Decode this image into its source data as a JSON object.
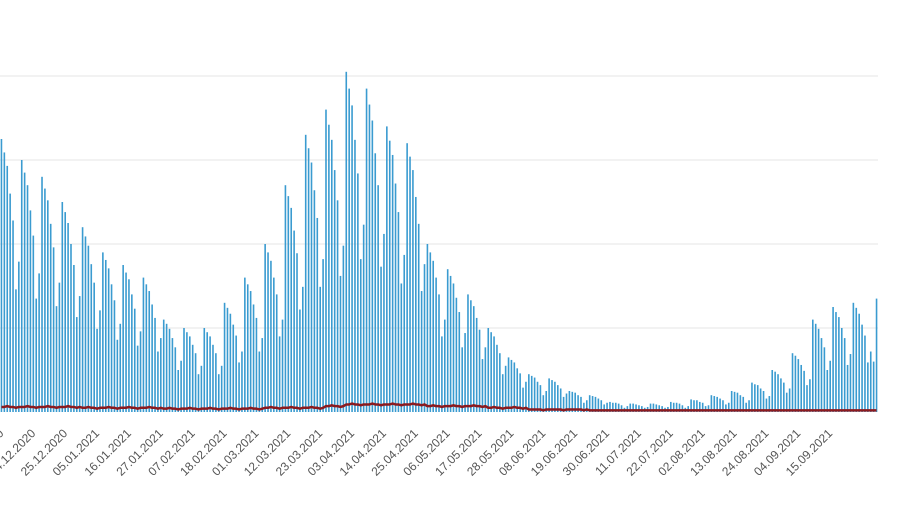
{
  "chart_data": {
    "type": "bar",
    "categories": [
      null,
      "2020",
      null,
      null,
      null,
      null,
      null,
      null,
      null,
      null,
      null,
      null,
      "14.12.2020",
      null,
      null,
      null,
      null,
      null,
      null,
      null,
      null,
      null,
      null,
      "25.12.2020",
      null,
      null,
      null,
      null,
      null,
      null,
      null,
      null,
      null,
      null,
      "05.01.2021",
      null,
      null,
      null,
      null,
      null,
      null,
      null,
      null,
      null,
      null,
      "16.01.2021",
      null,
      null,
      null,
      null,
      null,
      null,
      null,
      null,
      null,
      null,
      "27.01.2021",
      null,
      null,
      null,
      null,
      null,
      null,
      null,
      null,
      null,
      null,
      "07.02.2021",
      null,
      null,
      null,
      null,
      null,
      null,
      null,
      null,
      null,
      null,
      "18.02.2021",
      null,
      null,
      null,
      null,
      null,
      null,
      null,
      null,
      null,
      null,
      "01.03.2021",
      null,
      null,
      null,
      null,
      null,
      null,
      null,
      null,
      null,
      null,
      "12.03.2021",
      null,
      null,
      null,
      null,
      null,
      null,
      null,
      null,
      null,
      null,
      "23.03.2021",
      null,
      null,
      null,
      null,
      null,
      null,
      null,
      null,
      null,
      null,
      "03.04.2021",
      null,
      null,
      null,
      null,
      null,
      null,
      null,
      null,
      null,
      null,
      "14.04.2021",
      null,
      null,
      null,
      null,
      null,
      null,
      null,
      null,
      null,
      null,
      "25.04.2021",
      null,
      null,
      null,
      null,
      null,
      null,
      null,
      null,
      null,
      null,
      "06.05.2021",
      null,
      null,
      null,
      null,
      null,
      null,
      null,
      null,
      null,
      null,
      "17.05.2021",
      null,
      null,
      null,
      null,
      null,
      null,
      null,
      null,
      null,
      null,
      "28.05.2021",
      null,
      null,
      null,
      null,
      null,
      null,
      null,
      null,
      null,
      null,
      "08.06.2021",
      null,
      null,
      null,
      null,
      null,
      null,
      null,
      null,
      null,
      null,
      "19.06.2021",
      null,
      null,
      null,
      null,
      null,
      null,
      null,
      null,
      null,
      null,
      "30.06.2021",
      null,
      null,
      null,
      null,
      null,
      null,
      null,
      null,
      null,
      null,
      "11.07.2021",
      null,
      null,
      null,
      null,
      null,
      null,
      null,
      null,
      null,
      null,
      "22.07.2021",
      null,
      null,
      null,
      null,
      null,
      null,
      null,
      null,
      null,
      null,
      "02.08.2021",
      null,
      null,
      null,
      null,
      null,
      null,
      null,
      null,
      null,
      null,
      "13.08.2021",
      null,
      null,
      null,
      null,
      null,
      null,
      null,
      null,
      null,
      null,
      "24.08.2021",
      null,
      null,
      null,
      null,
      null,
      null,
      null,
      null,
      null,
      null,
      "04.09.2021",
      null,
      null,
      null,
      null,
      null,
      null,
      null,
      null,
      null,
      null,
      "15.09.2021",
      null,
      null,
      null,
      null,
      null,
      null,
      null,
      null,
      null,
      null,
      null,
      null,
      null,
      null,
      null
    ],
    "series": [
      {
        "type": "bar",
        "color": "#3a9bd0",
        "values": [
          3.25,
          3.09,
          2.93,
          2.6,
          2.28,
          1.46,
          1.79,
          3.0,
          2.85,
          2.7,
          2.4,
          2.1,
          1.35,
          1.65,
          2.8,
          2.66,
          2.52,
          2.24,
          1.96,
          1.26,
          1.54,
          2.5,
          2.38,
          2.25,
          2.0,
          1.75,
          1.13,
          1.38,
          2.2,
          2.09,
          1.98,
          1.76,
          1.54,
          0.99,
          1.21,
          1.9,
          1.81,
          1.71,
          1.52,
          1.33,
          0.86,
          1.05,
          1.75,
          1.66,
          1.58,
          1.4,
          1.23,
          0.79,
          0.96,
          1.6,
          1.52,
          1.44,
          1.28,
          1.12,
          0.72,
          0.88,
          1.1,
          1.05,
          0.99,
          0.88,
          0.77,
          0.5,
          0.61,
          1.0,
          0.95,
          0.9,
          0.8,
          0.7,
          0.45,
          0.55,
          1.0,
          0.95,
          0.9,
          0.8,
          0.7,
          0.45,
          0.55,
          1.3,
          1.24,
          1.17,
          1.04,
          0.91,
          0.59,
          0.72,
          1.6,
          1.52,
          1.44,
          1.28,
          1.12,
          0.72,
          0.88,
          2.0,
          1.9,
          1.8,
          1.6,
          1.4,
          0.9,
          1.1,
          2.7,
          2.57,
          2.43,
          2.16,
          1.89,
          1.22,
          1.49,
          3.3,
          3.14,
          2.97,
          2.64,
          2.31,
          1.49,
          1.82,
          3.6,
          3.42,
          3.24,
          2.88,
          2.52,
          1.62,
          1.98,
          4.05,
          3.85,
          3.65,
          3.24,
          2.84,
          1.82,
          2.23,
          3.85,
          3.66,
          3.47,
          3.08,
          2.7,
          1.73,
          2.12,
          3.4,
          3.23,
          3.06,
          2.72,
          2.38,
          1.53,
          1.87,
          3.2,
          3.04,
          2.88,
          2.56,
          2.24,
          1.44,
          1.76,
          2.0,
          1.9,
          1.8,
          1.6,
          1.4,
          0.9,
          1.1,
          1.7,
          1.62,
          1.53,
          1.36,
          1.19,
          0.77,
          0.94,
          1.4,
          1.33,
          1.26,
          1.12,
          0.98,
          0.63,
          0.77,
          1.0,
          0.95,
          0.9,
          0.8,
          0.7,
          0.45,
          0.55,
          0.65,
          0.62,
          0.59,
          0.52,
          0.46,
          0.29,
          0.36,
          0.45,
          0.43,
          0.41,
          0.36,
          0.32,
          0.2,
          0.25,
          0.4,
          0.38,
          0.36,
          0.32,
          0.28,
          0.18,
          0.22,
          0.25,
          0.24,
          0.23,
          0.2,
          0.18,
          0.11,
          0.14,
          0.2,
          0.19,
          0.18,
          0.16,
          0.14,
          0.09,
          0.11,
          0.12,
          0.11,
          0.11,
          0.1,
          0.08,
          0.05,
          0.07,
          0.1,
          0.1,
          0.09,
          0.08,
          0.07,
          0.05,
          0.06,
          0.1,
          0.1,
          0.09,
          0.08,
          0.07,
          0.05,
          0.06,
          0.12,
          0.11,
          0.11,
          0.1,
          0.08,
          0.05,
          0.07,
          0.15,
          0.14,
          0.14,
          0.12,
          0.11,
          0.07,
          0.08,
          0.2,
          0.19,
          0.18,
          0.16,
          0.14,
          0.09,
          0.11,
          0.25,
          0.24,
          0.23,
          0.2,
          0.18,
          0.11,
          0.14,
          0.35,
          0.33,
          0.32,
          0.28,
          0.25,
          0.16,
          0.19,
          0.5,
          0.48,
          0.45,
          0.4,
          0.35,
          0.23,
          0.28,
          0.7,
          0.67,
          0.63,
          0.56,
          0.49,
          0.32,
          0.39,
          1.1,
          1.05,
          0.99,
          0.88,
          0.77,
          0.5,
          0.61,
          1.25,
          1.19,
          1.13,
          1.0,
          0.88,
          0.56,
          0.69,
          1.3,
          1.24,
          1.17,
          1.04,
          0.91,
          0.59,
          0.72,
          0.6,
          1.35
        ]
      },
      {
        "type": "line",
        "color": "#8b1a1f",
        "values": [
          0.06,
          0.06,
          0.07,
          0.06,
          0.06,
          0.05,
          0.06,
          0.06,
          0.06,
          0.07,
          0.06,
          0.06,
          0.05,
          0.06,
          0.06,
          0.06,
          0.07,
          0.06,
          0.06,
          0.05,
          0.06,
          0.06,
          0.06,
          0.07,
          0.06,
          0.06,
          0.05,
          0.06,
          0.05,
          0.05,
          0.06,
          0.05,
          0.05,
          0.04,
          0.05,
          0.05,
          0.05,
          0.06,
          0.05,
          0.05,
          0.04,
          0.05,
          0.05,
          0.05,
          0.06,
          0.05,
          0.05,
          0.04,
          0.05,
          0.05,
          0.05,
          0.06,
          0.05,
          0.05,
          0.04,
          0.05,
          0.04,
          0.04,
          0.05,
          0.04,
          0.04,
          0.03,
          0.04,
          0.04,
          0.04,
          0.05,
          0.04,
          0.04,
          0.03,
          0.04,
          0.04,
          0.04,
          0.05,
          0.04,
          0.04,
          0.03,
          0.04,
          0.04,
          0.04,
          0.05,
          0.04,
          0.04,
          0.03,
          0.04,
          0.04,
          0.04,
          0.05,
          0.04,
          0.04,
          0.03,
          0.04,
          0.05,
          0.05,
          0.06,
          0.05,
          0.05,
          0.04,
          0.05,
          0.05,
          0.05,
          0.06,
          0.05,
          0.05,
          0.04,
          0.05,
          0.05,
          0.05,
          0.06,
          0.05,
          0.05,
          0.04,
          0.05,
          0.07,
          0.07,
          0.08,
          0.07,
          0.07,
          0.06,
          0.07,
          0.09,
          0.09,
          0.1,
          0.09,
          0.09,
          0.08,
          0.09,
          0.09,
          0.09,
          0.1,
          0.09,
          0.09,
          0.08,
          0.09,
          0.09,
          0.09,
          0.1,
          0.09,
          0.09,
          0.08,
          0.09,
          0.09,
          0.09,
          0.1,
          0.09,
          0.09,
          0.08,
          0.09,
          0.07,
          0.07,
          0.08,
          0.07,
          0.07,
          0.06,
          0.07,
          0.07,
          0.07,
          0.08,
          0.07,
          0.07,
          0.06,
          0.07,
          0.07,
          0.07,
          0.08,
          0.07,
          0.07,
          0.06,
          0.07,
          0.05,
          0.05,
          0.06,
          0.05,
          0.05,
          0.04,
          0.05,
          0.05,
          0.05,
          0.06,
          0.05,
          0.05,
          0.04,
          0.05,
          0.03,
          0.03,
          0.03,
          0.03,
          0.03,
          0.02,
          0.03,
          0.03,
          0.03,
          0.03,
          0.03,
          0.03,
          0.02,
          0.03,
          0.03,
          0.03,
          0.03,
          0.03,
          0.03,
          0.02,
          0.03,
          0.02,
          0.02,
          0.02,
          0.02,
          0.02,
          0.02,
          0.02,
          0.02,
          0.02,
          0.02,
          0.02,
          0.02,
          0.02,
          0.02,
          0.02,
          0.02,
          0.02,
          0.02,
          0.02,
          0.02,
          0.02,
          0.02,
          0.02,
          0.02,
          0.02,
          0.02,
          0.02,
          0.02,
          0.02,
          0.02,
          0.02,
          0.02,
          0.02,
          0.02,
          0.02,
          0.02,
          0.02,
          0.02,
          0.02,
          0.02,
          0.02,
          0.02,
          0.02,
          0.02,
          0.02,
          0.02,
          0.02,
          0.02,
          0.02,
          0.02,
          0.02,
          0.02,
          0.02,
          0.02,
          0.02,
          0.02,
          0.02,
          0.02,
          0.02,
          0.02,
          0.02,
          0.02,
          0.02,
          0.02,
          0.02,
          0.02,
          0.02,
          0.02,
          0.02,
          0.02,
          0.02,
          0.02,
          0.02,
          0.02,
          0.02,
          0.02,
          0.02,
          0.02,
          0.02,
          0.02,
          0.02,
          0.02,
          0.02,
          0.02,
          0.02,
          0.02,
          0.02,
          0.02,
          0.02,
          0.02,
          0.02,
          0.02,
          0.02,
          0.02,
          0.02,
          0.02,
          0.02,
          0.02,
          0.02,
          0.02
        ]
      }
    ],
    "ylim": [
      0,
      4.25
    ],
    "yticks": [
      1,
      2,
      3,
      4
    ],
    "grid": true
  }
}
